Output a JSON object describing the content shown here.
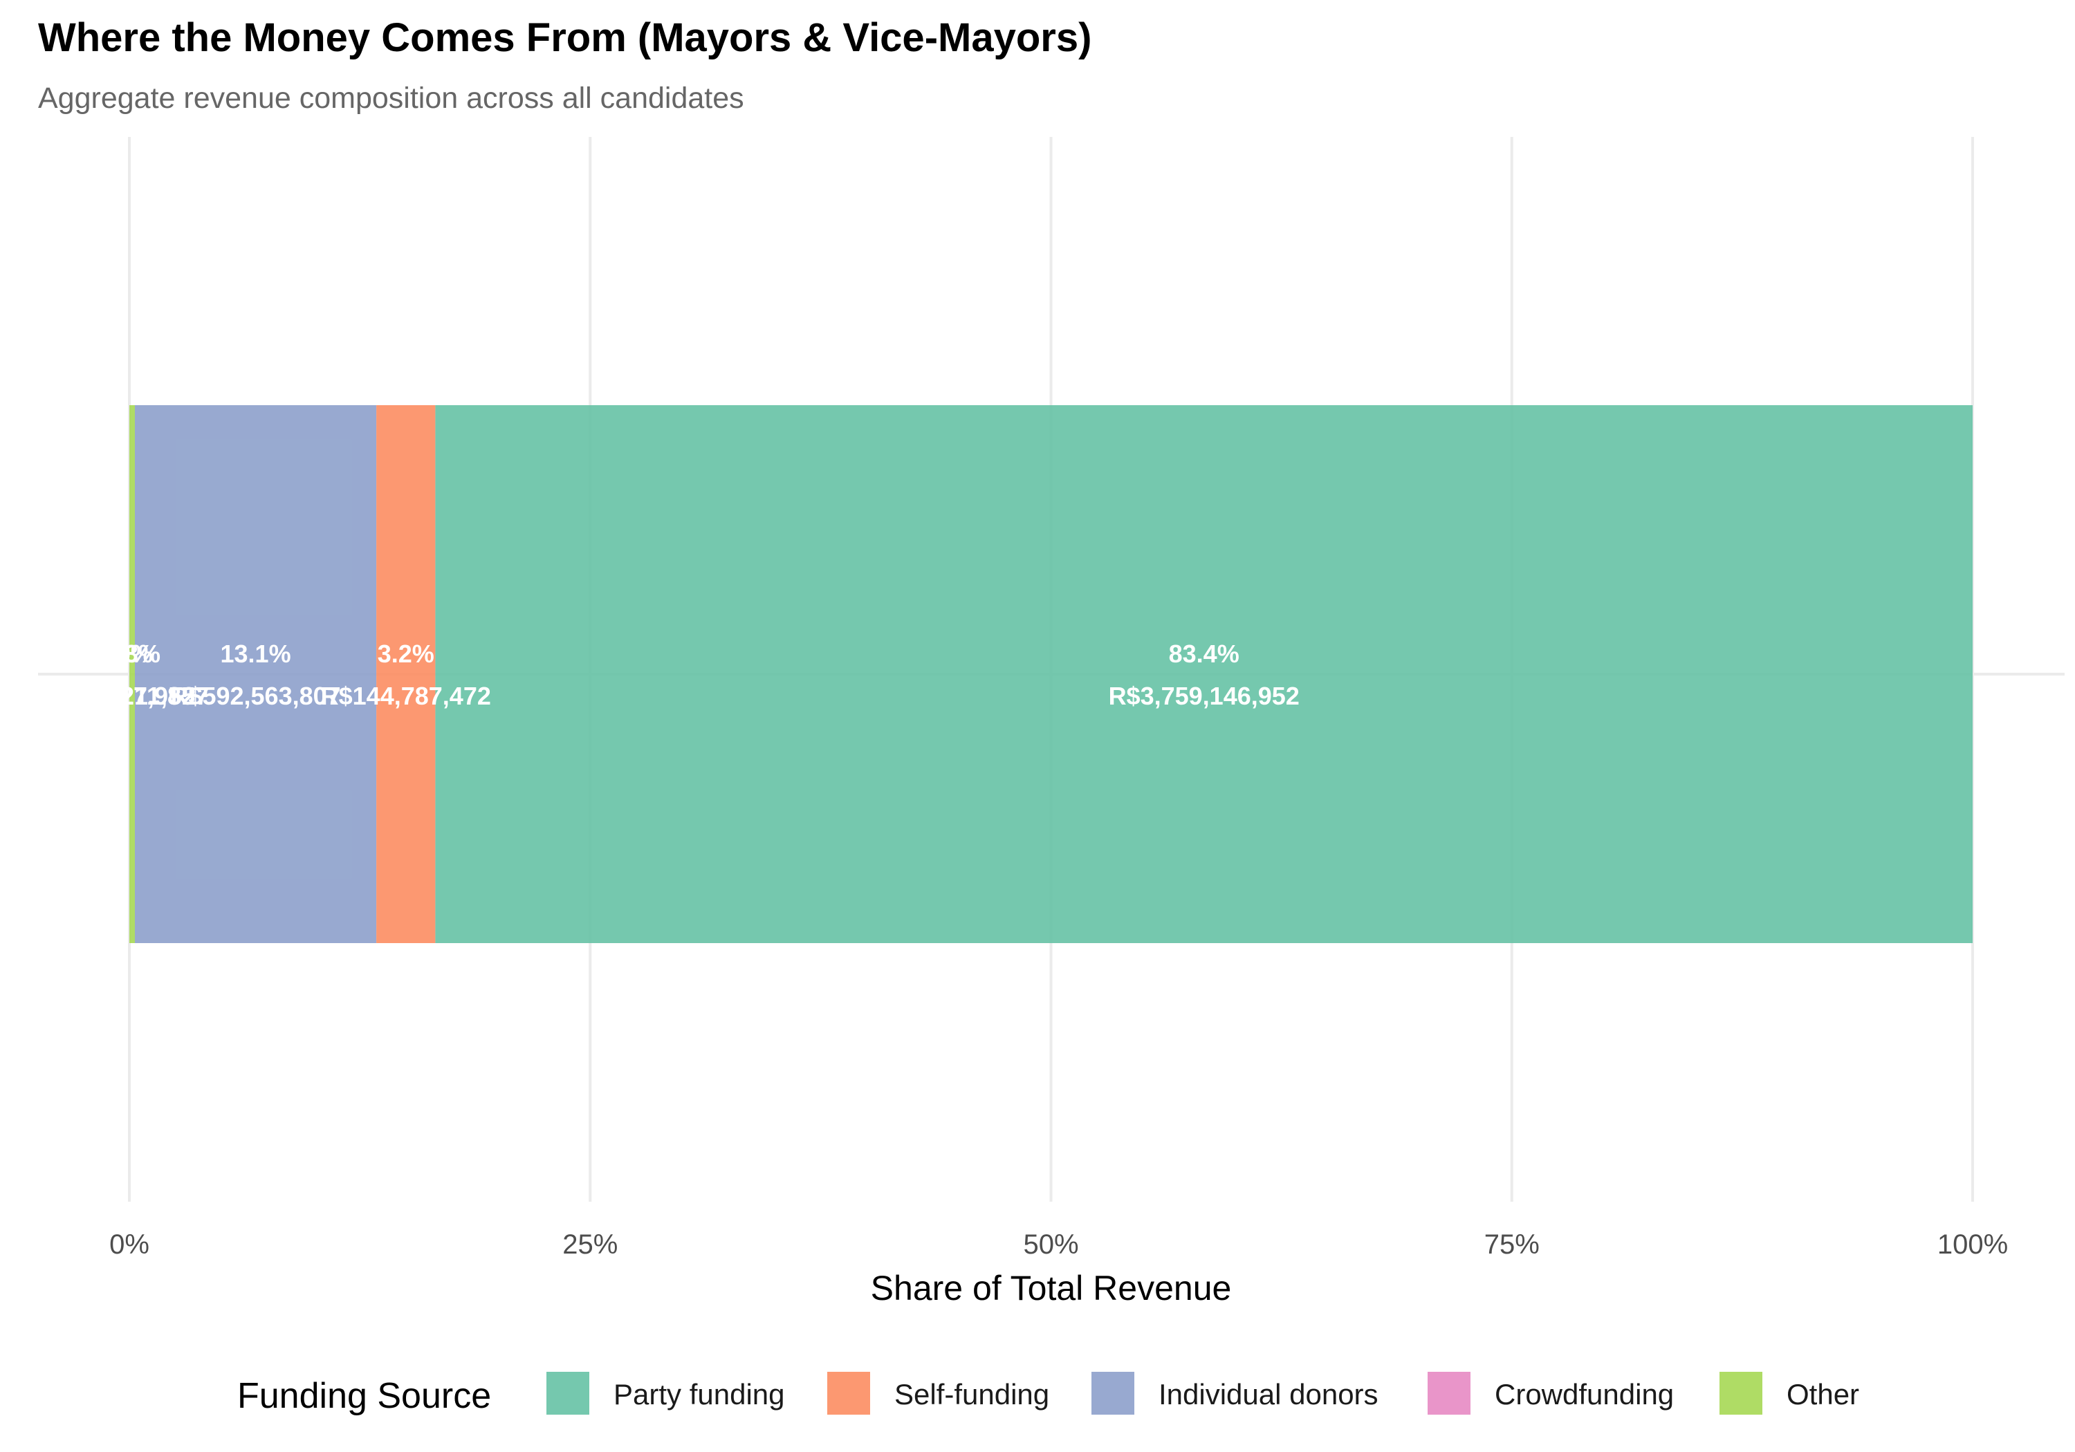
{
  "chart_data": {
    "type": "bar",
    "orientation": "horizontal",
    "stacked": true,
    "title": "Where the Money Comes From (Mayors & Vice-Mayors)",
    "subtitle": "Aggregate revenue composition across all candidates",
    "xlabel": "Share of Total Revenue",
    "ylabel": "",
    "xlim": [
      0,
      100
    ],
    "x_ticks": [
      {
        "value": 0,
        "label": "0%"
      },
      {
        "value": 25,
        "label": "25%"
      },
      {
        "value": 50,
        "label": "50%"
      },
      {
        "value": 75,
        "label": "75%"
      },
      {
        "value": 100,
        "label": "100%"
      }
    ],
    "grid": true,
    "legend": {
      "title": "Funding Source",
      "position": "bottom"
    },
    "legend_order": [
      "Party funding",
      "Self-funding",
      "Individual donors",
      "Crowdfunding",
      "Other"
    ],
    "stack_order": [
      "Other",
      "Crowdfunding",
      "Individual donors",
      "Self-funding",
      "Party funding"
    ],
    "series": [
      {
        "name": "Party funding",
        "percent": 83.4,
        "amount": 3759146952,
        "percent_label": "83.4%",
        "amount_label": "R$3,759,146,952",
        "color": "#66c2a5"
      },
      {
        "name": "Self-funding",
        "percent": 3.2,
        "amount": 144787472,
        "percent_label": "3.2%",
        "amount_label": "R$144,787,472",
        "color": "#fc8d62"
      },
      {
        "name": "Individual donors",
        "percent": 13.1,
        "amount": 592563807,
        "percent_label": "13.1%",
        "amount_label": "R$592,563,807",
        "color": "#8da0cb"
      },
      {
        "name": "Crowdfunding",
        "percent": 0.0,
        "amount": 827952,
        "percent_label": "0%",
        "amount_label": "R$827,952",
        "color": "#e78ac3"
      },
      {
        "name": "Other",
        "percent": 0.3,
        "amount": 11211857,
        "percent_label": "0.3%",
        "amount_label": "R$11,211,857",
        "color": "#a6d854"
      }
    ]
  }
}
